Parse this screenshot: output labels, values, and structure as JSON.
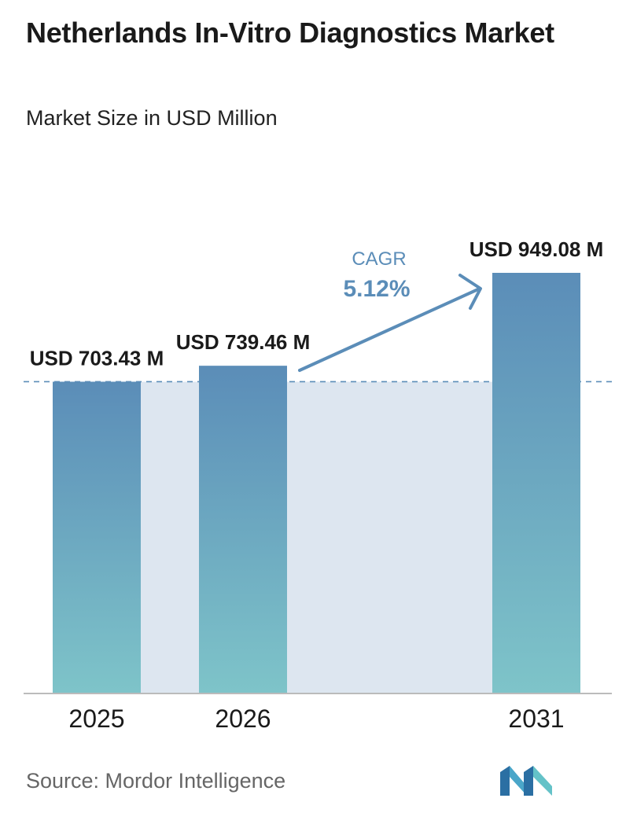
{
  "header": {
    "title": "Netherlands In-Vitro Diagnostics Market",
    "subtitle": "Market Size in USD Million"
  },
  "chart_data": {
    "type": "bar",
    "title": "Netherlands In-Vitro Diagnostics Market",
    "subtitle": "Market Size in USD Million",
    "unit": "USD Million",
    "categories": [
      "2025",
      "2026",
      "2031"
    ],
    "values": [
      703.43,
      739.46,
      949.08
    ],
    "data_labels": [
      "USD 703.43 M",
      "USD 739.46 M",
      "USD 949.08 M"
    ],
    "cagr_label": "CAGR",
    "cagr_value": "5.12%",
    "grid": false,
    "legend": "none"
  },
  "footer": {
    "source": "Source:  Mordor Intelligence"
  },
  "colors": {
    "bar_top": "#5b8db8",
    "bar_bottom": "#7ec4c9",
    "band": "#dde6f0",
    "arrow": "#5b8db8",
    "cagr_label": "#5b8db8",
    "axis": "#bbbbbb",
    "title": "#1a1a1a",
    "source": "#666666"
  },
  "icons": {
    "logo": "mordor-intelligence-logo-icon"
  }
}
